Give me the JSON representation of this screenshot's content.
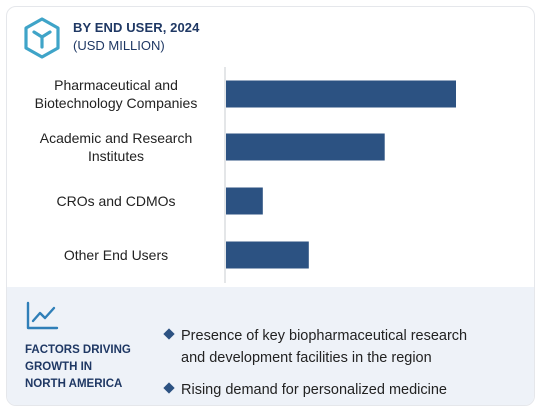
{
  "header": {
    "title": "BY END USER, 2024",
    "subtitle": "(USD MILLION)"
  },
  "chart_data": {
    "type": "bar",
    "orientation": "horizontal",
    "categories": [
      [
        "Pharmaceutical and",
        "Biotechnology Companies"
      ],
      [
        "Academic and Research",
        "Institutes"
      ],
      [
        "CROs and CDMOs"
      ],
      [
        "Other End Users"
      ]
    ],
    "values": [
      100,
      69,
      16,
      36
    ],
    "bar_color": "#2c5282",
    "value_axis_visible": false,
    "grid": false
  },
  "factors": {
    "title_lines": [
      "FACTORS DRIVING",
      "GROWTH IN",
      "NORTH AMERICA"
    ],
    "bullets": [
      [
        "Presence of key biopharmaceutical research",
        "and development facilities in the region"
      ],
      [
        "Rising demand for personalized medicine"
      ]
    ],
    "icon": "trend-line-icon"
  },
  "colors": {
    "accent": "#2c5282",
    "heading": "#1f3864",
    "panel": "#eef2f8",
    "logo": "#3fa4c8"
  }
}
